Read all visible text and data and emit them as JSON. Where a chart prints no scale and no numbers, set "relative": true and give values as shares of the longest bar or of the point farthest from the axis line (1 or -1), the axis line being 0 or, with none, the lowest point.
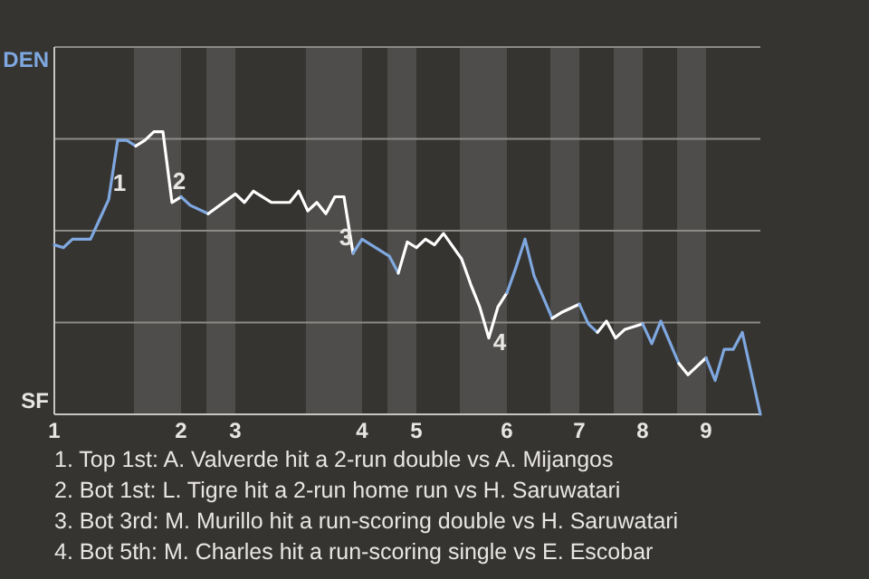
{
  "chart_data": {
    "type": "line",
    "relative": true,
    "categories": [
      "1",
      null,
      null,
      null,
      null,
      null,
      null,
      null,
      null,
      null,
      null,
      null,
      null,
      null,
      "2",
      null,
      null,
      null,
      null,
      null,
      "3",
      null,
      null,
      null,
      null,
      null,
      null,
      null,
      null,
      null,
      null,
      null,
      null,
      null,
      "4",
      null,
      null,
      null,
      null,
      null,
      "5",
      null,
      null,
      null,
      null,
      null,
      null,
      null,
      null,
      null,
      "6",
      null,
      null,
      null,
      null,
      null,
      null,
      null,
      "7",
      null,
      null,
      null,
      null,
      null,
      null,
      "8",
      null,
      null,
      null,
      null,
      null,
      null,
      "9",
      null,
      null,
      null,
      null,
      null,
      null
    ],
    "grid": "y",
    "marker": "none",
    "line_style": "solid",
    "series": [
      {
        "color": "#7fa8e0",
        "values": [
          0.6,
          0.59,
          0.62,
          null,
          0.62,
          0.69,
          0.76,
          0.97,
          0.97,
          0.95,
          null,
          null,
          null,
          null,
          null,
          null,
          null,
          null,
          null,
          null,
          null,
          null,
          null,
          null,
          null,
          null,
          null,
          null,
          null,
          null,
          null,
          null,
          null,
          null,
          null,
          null,
          null,
          null,
          null,
          null,
          null,
          null,
          null,
          null,
          null,
          null,
          null,
          null,
          null,
          null,
          null,
          null,
          null,
          null,
          null,
          null,
          null,
          null,
          null,
          null,
          null,
          null,
          null,
          null,
          null,
          null,
          null,
          null,
          null,
          null,
          null,
          null,
          null,
          null,
          null,
          null,
          null,
          null,
          null
        ]
      },
      {
        "color": "#ffffff",
        "values": [
          null,
          null,
          null,
          null,
          null,
          null,
          null,
          null,
          null,
          0.95,
          0.97,
          1,
          1,
          0.75,
          0.77,
          null,
          null,
          null,
          null,
          null,
          null,
          null,
          null,
          null,
          null,
          null,
          null,
          null,
          null,
          null,
          null,
          null,
          null,
          null,
          null,
          null,
          null,
          null,
          null,
          null,
          null,
          null,
          null,
          null,
          null,
          null,
          null,
          null,
          null,
          null,
          null,
          null,
          null,
          null,
          null,
          null,
          null,
          null,
          null,
          null,
          null,
          null,
          null,
          null,
          null,
          null,
          null,
          null,
          null,
          null,
          null,
          null,
          null,
          null,
          null,
          null,
          null,
          null,
          null
        ]
      },
      {
        "color": "#7fa8e0",
        "values": [
          null,
          null,
          null,
          null,
          null,
          null,
          null,
          null,
          null,
          null,
          null,
          null,
          null,
          null,
          0.77,
          0.74,
          null,
          0.71,
          null,
          null,
          null,
          null,
          null,
          null,
          null,
          null,
          null,
          null,
          null,
          null,
          null,
          null,
          null,
          null,
          null,
          null,
          null,
          null,
          null,
          null,
          null,
          null,
          null,
          null,
          null,
          null,
          null,
          null,
          null,
          null,
          null,
          null,
          null,
          null,
          null,
          null,
          null,
          null,
          null,
          null,
          null,
          null,
          null,
          null,
          null,
          null,
          null,
          null,
          null,
          null,
          null,
          null,
          null,
          null,
          null,
          null,
          null,
          null,
          null
        ]
      },
      {
        "color": "#ffffff",
        "values": [
          null,
          null,
          null,
          null,
          null,
          null,
          null,
          null,
          null,
          null,
          null,
          null,
          null,
          null,
          null,
          null,
          null,
          0.71,
          null,
          null,
          0.78,
          0.75,
          0.79,
          null,
          0.75,
          null,
          0.75,
          0.79,
          0.72,
          0.75,
          0.71,
          0.77,
          0.77,
          0.57,
          null,
          null,
          null,
          null,
          null,
          null,
          null,
          null,
          null,
          null,
          null,
          null,
          null,
          null,
          null,
          null,
          null,
          null,
          null,
          null,
          null,
          null,
          null,
          null,
          null,
          null,
          null,
          null,
          null,
          null,
          null,
          null,
          null,
          null,
          null,
          null,
          null,
          null,
          null,
          null,
          null,
          null,
          null,
          null,
          null
        ]
      },
      {
        "color": "#7fa8e0",
        "values": [
          null,
          null,
          null,
          null,
          null,
          null,
          null,
          null,
          null,
          null,
          null,
          null,
          null,
          null,
          null,
          null,
          null,
          null,
          null,
          null,
          null,
          null,
          null,
          null,
          null,
          null,
          null,
          null,
          null,
          null,
          null,
          null,
          null,
          0.57,
          0.62,
          null,
          null,
          0.56,
          0.5,
          null,
          null,
          null,
          null,
          null,
          null,
          null,
          null,
          null,
          null,
          null,
          null,
          null,
          null,
          null,
          null,
          null,
          null,
          null,
          null,
          null,
          null,
          null,
          null,
          null,
          null,
          null,
          null,
          null,
          null,
          null,
          null,
          null,
          null,
          null,
          null,
          null,
          null,
          null,
          null
        ]
      },
      {
        "color": "#ffffff",
        "values": [
          null,
          null,
          null,
          null,
          null,
          null,
          null,
          null,
          null,
          null,
          null,
          null,
          null,
          null,
          null,
          null,
          null,
          null,
          null,
          null,
          null,
          null,
          null,
          null,
          null,
          null,
          null,
          null,
          null,
          null,
          null,
          null,
          null,
          null,
          null,
          null,
          null,
          null,
          0.5,
          0.61,
          0.59,
          0.62,
          0.6,
          0.64,
          null,
          0.55,
          0.46,
          0.38,
          0.27,
          0.38,
          0.43,
          null,
          null,
          null,
          null,
          null,
          null,
          null,
          null,
          null,
          null,
          null,
          null,
          null,
          null,
          null,
          null,
          null,
          null,
          null,
          null,
          null,
          null,
          null,
          null,
          null,
          null,
          null,
          null
        ]
      },
      {
        "color": "#7fa8e0",
        "values": [
          null,
          null,
          null,
          null,
          null,
          null,
          null,
          null,
          null,
          null,
          null,
          null,
          null,
          null,
          null,
          null,
          null,
          null,
          null,
          null,
          null,
          null,
          null,
          null,
          null,
          null,
          null,
          null,
          null,
          null,
          null,
          null,
          null,
          null,
          null,
          null,
          null,
          null,
          null,
          null,
          null,
          null,
          null,
          null,
          null,
          null,
          null,
          null,
          null,
          null,
          0.43,
          0.52,
          0.62,
          0.49,
          null,
          0.34,
          null,
          null,
          null,
          null,
          null,
          null,
          null,
          null,
          null,
          null,
          null,
          null,
          null,
          null,
          null,
          null,
          null,
          null,
          null,
          null,
          null,
          null,
          null
        ]
      },
      {
        "color": "#ffffff",
        "values": [
          null,
          null,
          null,
          null,
          null,
          null,
          null,
          null,
          null,
          null,
          null,
          null,
          null,
          null,
          null,
          null,
          null,
          null,
          null,
          null,
          null,
          null,
          null,
          null,
          null,
          null,
          null,
          null,
          null,
          null,
          null,
          null,
          null,
          null,
          null,
          null,
          null,
          null,
          null,
          null,
          null,
          null,
          null,
          null,
          null,
          null,
          null,
          null,
          null,
          null,
          null,
          null,
          null,
          null,
          null,
          0.34,
          0.36,
          null,
          0.39,
          null,
          null,
          null,
          null,
          null,
          null,
          null,
          null,
          null,
          null,
          null,
          null,
          null,
          null,
          null,
          null,
          null,
          null,
          null,
          null
        ]
      },
      {
        "color": "#7fa8e0",
        "values": [
          null,
          null,
          null,
          null,
          null,
          null,
          null,
          null,
          null,
          null,
          null,
          null,
          null,
          null,
          null,
          null,
          null,
          null,
          null,
          null,
          null,
          null,
          null,
          null,
          null,
          null,
          null,
          null,
          null,
          null,
          null,
          null,
          null,
          null,
          null,
          null,
          null,
          null,
          null,
          null,
          null,
          null,
          null,
          null,
          null,
          null,
          null,
          null,
          null,
          null,
          null,
          null,
          null,
          null,
          null,
          null,
          null,
          null,
          0.39,
          0.32,
          0.29,
          null,
          null,
          null,
          null,
          null,
          null,
          null,
          null,
          null,
          null,
          null,
          null,
          null,
          null,
          null,
          null,
          null,
          null
        ]
      },
      {
        "color": "#ffffff",
        "values": [
          null,
          null,
          null,
          null,
          null,
          null,
          null,
          null,
          null,
          null,
          null,
          null,
          null,
          null,
          null,
          null,
          null,
          null,
          null,
          null,
          null,
          null,
          null,
          null,
          null,
          null,
          null,
          null,
          null,
          null,
          null,
          null,
          null,
          null,
          null,
          null,
          null,
          null,
          null,
          null,
          null,
          null,
          null,
          null,
          null,
          null,
          null,
          null,
          null,
          null,
          null,
          null,
          null,
          null,
          null,
          null,
          null,
          null,
          null,
          null,
          0.29,
          0.33,
          0.27,
          0.3,
          null,
          0.32,
          null,
          null,
          null,
          null,
          null,
          null,
          null,
          null,
          null,
          null,
          null,
          null,
          null
        ]
      },
      {
        "color": "#7fa8e0",
        "values": [
          null,
          null,
          null,
          null,
          null,
          null,
          null,
          null,
          null,
          null,
          null,
          null,
          null,
          null,
          null,
          null,
          null,
          null,
          null,
          null,
          null,
          null,
          null,
          null,
          null,
          null,
          null,
          null,
          null,
          null,
          null,
          null,
          null,
          null,
          null,
          null,
          null,
          null,
          null,
          null,
          null,
          null,
          null,
          null,
          null,
          null,
          null,
          null,
          null,
          null,
          null,
          null,
          null,
          null,
          null,
          null,
          null,
          null,
          null,
          null,
          null,
          null,
          null,
          null,
          null,
          0.32,
          0.25,
          0.33,
          null,
          0.18,
          null,
          null,
          null,
          null,
          null,
          null,
          null,
          null,
          null
        ]
      },
      {
        "color": "#ffffff",
        "values": [
          null,
          null,
          null,
          null,
          null,
          null,
          null,
          null,
          null,
          null,
          null,
          null,
          null,
          null,
          null,
          null,
          null,
          null,
          null,
          null,
          null,
          null,
          null,
          null,
          null,
          null,
          null,
          null,
          null,
          null,
          null,
          null,
          null,
          null,
          null,
          null,
          null,
          null,
          null,
          null,
          null,
          null,
          null,
          null,
          null,
          null,
          null,
          null,
          null,
          null,
          null,
          null,
          null,
          null,
          null,
          null,
          null,
          null,
          null,
          null,
          null,
          null,
          null,
          null,
          null,
          null,
          null,
          null,
          null,
          0.18,
          0.14,
          null,
          0.2,
          null,
          null,
          null,
          null,
          null,
          null
        ]
      },
      {
        "color": "#7fa8e0",
        "values": [
          null,
          null,
          null,
          null,
          null,
          null,
          null,
          null,
          null,
          null,
          null,
          null,
          null,
          null,
          null,
          null,
          null,
          null,
          null,
          null,
          null,
          null,
          null,
          null,
          null,
          null,
          null,
          null,
          null,
          null,
          null,
          null,
          null,
          null,
          null,
          null,
          null,
          null,
          null,
          null,
          null,
          null,
          null,
          null,
          null,
          null,
          null,
          null,
          null,
          null,
          null,
          null,
          null,
          null,
          null,
          null,
          null,
          null,
          null,
          null,
          null,
          null,
          null,
          null,
          null,
          null,
          null,
          null,
          null,
          null,
          null,
          null,
          0.2,
          0.12,
          0.23,
          0.23,
          0.29,
          null,
          0
        ]
      }
    ],
    "annotations": [
      "DEN",
      "SF",
      "1",
      "2",
      "3",
      "4",
      "1. Top 1st: A. Valverde hit a 2-run double vs A. Mijangos",
      "2. Bot 1st: L. Tigre hit a 2-run home run vs H. Saruwatari",
      "3. Bot 3rd: M. Murillo hit a run-scoring double vs H. Saruwatari",
      "4. Bot 5th: M. Charles hit a run-scoring single vs E. Escobar"
    ]
  }
}
